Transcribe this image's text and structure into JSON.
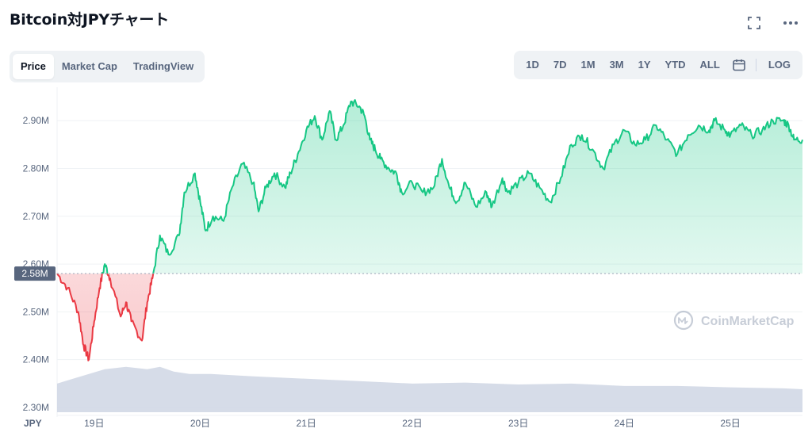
{
  "header": {
    "title": "Bitcoin対JPYチャート",
    "fullscreen_icon": "expand-icon",
    "more_icon": "more-horizontal-icon"
  },
  "tabs": [
    {
      "label": "Price",
      "active": true
    },
    {
      "label": "Market Cap",
      "active": false
    },
    {
      "label": "TradingView",
      "active": false
    }
  ],
  "ranges": [
    "1D",
    "7D",
    "1M",
    "3M",
    "1Y",
    "YTD",
    "ALL"
  ],
  "calendar_icon": "calendar-icon",
  "log_label": "LOG",
  "watermark": "CoinMarketCap",
  "colors": {
    "up": "#16c784",
    "down": "#ea3943",
    "volume": "#cfd6e4",
    "grid": "#eff2f5"
  },
  "chart_data": {
    "type": "line",
    "y_ticks": [
      "2.90M",
      "2.80M",
      "2.70M",
      "2.60M",
      "2.50M",
      "2.40M",
      "2.30M"
    ],
    "y_tick_values": [
      2.9,
      2.8,
      2.7,
      2.6,
      2.5,
      2.4,
      2.3
    ],
    "x_ticks": [
      "19日",
      "20日",
      "21日",
      "22日",
      "23日",
      "24日",
      "25日"
    ],
    "x_tick_values": [
      19,
      20,
      21,
      22,
      23,
      24,
      25
    ],
    "currency_label": "JPY",
    "baseline_label": "2.58M",
    "baseline": 2.58,
    "xlim": [
      18.65,
      25.68
    ],
    "ylim": [
      2.29,
      2.97
    ],
    "grid": true,
    "series": [
      {
        "x": [
          18.65,
          18.75,
          18.85,
          18.9,
          18.95,
          19.0,
          19.05,
          19.1,
          19.15,
          19.25,
          19.3,
          19.35,
          19.45,
          19.5,
          19.55,
          19.62,
          19.7,
          19.8,
          19.85,
          19.95,
          20.0,
          20.05,
          20.12,
          20.22,
          20.3,
          20.4,
          20.5,
          20.55,
          20.62,
          20.7,
          20.8,
          20.85,
          20.92,
          21.0,
          21.08,
          21.15,
          21.22,
          21.28,
          21.35,
          21.42,
          21.5,
          21.55,
          21.6,
          21.65,
          21.7,
          21.78,
          21.85,
          21.9,
          22.0,
          22.1,
          22.2,
          22.28,
          22.35,
          22.42,
          22.5,
          22.6,
          22.7,
          22.75,
          22.85,
          22.9,
          23.0,
          23.1,
          23.2,
          23.3,
          23.4,
          23.5,
          23.6,
          23.7,
          23.8,
          23.9,
          24.0,
          24.1,
          24.2,
          24.3,
          24.4,
          24.5,
          24.6,
          24.7,
          24.8,
          24.85,
          24.95,
          25.0,
          25.1,
          25.2,
          25.3,
          25.4,
          25.5,
          25.55,
          25.6,
          25.68
        ],
        "y": [
          2.58,
          2.55,
          2.5,
          2.43,
          2.4,
          2.48,
          2.55,
          2.6,
          2.57,
          2.49,
          2.52,
          2.48,
          2.44,
          2.52,
          2.57,
          2.66,
          2.62,
          2.66,
          2.75,
          2.79,
          2.73,
          2.67,
          2.7,
          2.69,
          2.76,
          2.81,
          2.77,
          2.71,
          2.76,
          2.79,
          2.76,
          2.79,
          2.83,
          2.88,
          2.91,
          2.86,
          2.92,
          2.86,
          2.89,
          2.94,
          2.93,
          2.91,
          2.86,
          2.84,
          2.82,
          2.8,
          2.79,
          2.75,
          2.77,
          2.75,
          2.76,
          2.82,
          2.76,
          2.73,
          2.77,
          2.72,
          2.75,
          2.72,
          2.78,
          2.75,
          2.77,
          2.79,
          2.76,
          2.73,
          2.78,
          2.85,
          2.87,
          2.84,
          2.8,
          2.85,
          2.88,
          2.85,
          2.86,
          2.89,
          2.86,
          2.83,
          2.87,
          2.89,
          2.88,
          2.9,
          2.88,
          2.87,
          2.89,
          2.87,
          2.88,
          2.9,
          2.9,
          2.89,
          2.86,
          2.86
        ]
      }
    ],
    "volume": {
      "x": [
        18.65,
        18.8,
        18.95,
        19.1,
        19.3,
        19.5,
        19.62,
        19.75,
        19.9,
        20.1,
        20.5,
        21.0,
        21.5,
        22.0,
        22.5,
        23.0,
        23.5,
        24.0,
        24.5,
        25.0,
        25.5,
        25.68
      ],
      "y": [
        2.35,
        2.36,
        2.37,
        2.38,
        2.385,
        2.38,
        2.385,
        2.375,
        2.37,
        2.37,
        2.365,
        2.36,
        2.355,
        2.35,
        2.352,
        2.348,
        2.35,
        2.345,
        2.345,
        2.342,
        2.34,
        2.338
      ]
    }
  }
}
